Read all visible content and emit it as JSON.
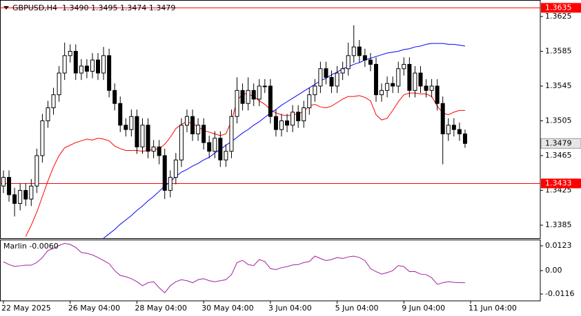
{
  "chart_data": [
    {
      "type": "candlestick",
      "title": "GBPUSD,H4  1.3490 1.3495 1.3474 1.3479",
      "xlim": [
        -0.62,
        96.53
      ],
      "ylim": [
        1.337,
        1.3644
      ],
      "yticks": [
        1.3625,
        1.3585,
        1.3545,
        1.3505,
        1.3465,
        1.3425,
        1.3385
      ],
      "hlines": [
        1.3635,
        1.3433
      ],
      "hline_color": "#ff0000",
      "bull_color": "#ffffff",
      "bear_color": "#000000",
      "open": [
        1.343,
        1.344,
        1.342,
        1.341,
        1.3425,
        1.3415,
        1.343,
        1.3465,
        1.3505,
        1.352,
        1.3535,
        1.356,
        1.358,
        1.3585,
        1.356,
        1.3568,
        1.3562,
        1.3575,
        1.356,
        1.358,
        1.354,
        1.3525,
        1.35,
        1.3495,
        1.351,
        1.3475,
        1.35,
        1.347,
        1.3475,
        1.3465,
        1.3425,
        1.344,
        1.346,
        1.35,
        1.351,
        1.349,
        1.35,
        1.348,
        1.347,
        1.3485,
        1.346,
        1.347,
        1.351,
        1.354,
        1.3525,
        1.354,
        1.353,
        1.3545,
        1.3545,
        1.351,
        1.3495,
        1.3505,
        1.35,
        1.3515,
        1.3505,
        1.352,
        1.3535,
        1.3545,
        1.3565,
        1.3555,
        1.3545,
        1.356,
        1.3565,
        1.358,
        1.359,
        1.358,
        1.3575,
        1.357,
        1.3535,
        1.354,
        1.3548,
        1.3545,
        1.3565,
        1.357,
        1.354,
        1.356,
        1.3545,
        1.354,
        1.3545,
        1.3525,
        1.349,
        1.35,
        1.3495,
        1.349
      ],
      "high": [
        1.3448,
        1.3448,
        1.3428,
        1.3433,
        1.3433,
        1.3438,
        1.3473,
        1.3513,
        1.3528,
        1.3543,
        1.3568,
        1.3595,
        1.3593,
        1.3593,
        1.3576,
        1.3576,
        1.3583,
        1.3583,
        1.359,
        1.3588,
        1.3548,
        1.3533,
        1.3508,
        1.3518,
        1.3518,
        1.3508,
        1.3508,
        1.3483,
        1.3483,
        1.3473,
        1.3448,
        1.3468,
        1.3508,
        1.3518,
        1.3518,
        1.3508,
        1.3508,
        1.3488,
        1.3493,
        1.3493,
        1.3478,
        1.3518,
        1.3555,
        1.3548,
        1.3555,
        1.3548,
        1.3553,
        1.3553,
        1.3553,
        1.3518,
        1.3513,
        1.3513,
        1.3523,
        1.3523,
        1.3528,
        1.3543,
        1.3553,
        1.3573,
        1.3573,
        1.3563,
        1.3568,
        1.3573,
        1.3595,
        1.3615,
        1.3598,
        1.3588,
        1.3583,
        1.3578,
        1.3548,
        1.3556,
        1.3556,
        1.3573,
        1.3578,
        1.3578,
        1.3568,
        1.3568,
        1.3553,
        1.3553,
        1.3553,
        1.3533,
        1.3508,
        1.3508,
        1.3503,
        1.3495
      ],
      "low": [
        1.3422,
        1.3412,
        1.3395,
        1.3402,
        1.3407,
        1.3407,
        1.3422,
        1.3457,
        1.3497,
        1.3512,
        1.3527,
        1.3552,
        1.3572,
        1.3552,
        1.3552,
        1.3554,
        1.3554,
        1.3552,
        1.3552,
        1.3532,
        1.3517,
        1.3492,
        1.3487,
        1.3487,
        1.3467,
        1.3467,
        1.3462,
        1.3462,
        1.3455,
        1.3415,
        1.3417,
        1.3432,
        1.3452,
        1.3492,
        1.3482,
        1.3482,
        1.3472,
        1.3462,
        1.3462,
        1.3452,
        1.3452,
        1.3462,
        1.3502,
        1.3517,
        1.3517,
        1.3522,
        1.3522,
        1.3537,
        1.3502,
        1.3487,
        1.3487,
        1.3492,
        1.3492,
        1.3497,
        1.3497,
        1.3512,
        1.3527,
        1.3537,
        1.3547,
        1.3537,
        1.3537,
        1.3552,
        1.3557,
        1.3572,
        1.3572,
        1.3567,
        1.3562,
        1.3527,
        1.3527,
        1.3532,
        1.3537,
        1.3537,
        1.3557,
        1.3532,
        1.3532,
        1.3537,
        1.3532,
        1.3532,
        1.3517,
        1.3455,
        1.3482,
        1.3487,
        1.3482,
        1.3474
      ],
      "close": [
        1.344,
        1.342,
        1.341,
        1.3425,
        1.3415,
        1.343,
        1.3465,
        1.3505,
        1.352,
        1.3535,
        1.356,
        1.358,
        1.3585,
        1.356,
        1.3568,
        1.3562,
        1.3575,
        1.356,
        1.358,
        1.354,
        1.3525,
        1.35,
        1.3495,
        1.351,
        1.3475,
        1.35,
        1.347,
        1.3475,
        1.3465,
        1.3425,
        1.344,
        1.346,
        1.35,
        1.351,
        1.349,
        1.35,
        1.348,
        1.347,
        1.3485,
        1.346,
        1.347,
        1.351,
        1.354,
        1.3525,
        1.354,
        1.353,
        1.3545,
        1.3545,
        1.351,
        1.3495,
        1.3505,
        1.35,
        1.3515,
        1.3505,
        1.352,
        1.3535,
        1.3545,
        1.3565,
        1.3555,
        1.3545,
        1.356,
        1.3565,
        1.358,
        1.359,
        1.358,
        1.3575,
        1.357,
        1.3535,
        1.354,
        1.3548,
        1.3545,
        1.3565,
        1.357,
        1.354,
        1.356,
        1.3545,
        1.354,
        1.3545,
        1.3525,
        1.349,
        1.35,
        1.3495,
        1.349,
        1.3479
      ],
      "series": [
        {
          "color": "#ff0000",
          "values": [
            null,
            null,
            null,
            null,
            1.3372,
            1.3385,
            1.34,
            1.3418,
            1.3436,
            1.3452,
            1.3465,
            1.3474,
            1.3477,
            1.348,
            1.3482,
            1.3484,
            1.3483,
            1.3485,
            1.3484,
            1.3482,
            1.3476,
            1.3473,
            1.3471,
            1.3471,
            1.3471,
            1.347,
            1.3471,
            1.3472,
            1.3473,
            1.3478,
            1.3486,
            1.3496,
            1.3501,
            1.3504,
            1.3502,
            1.3498,
            1.3494,
            1.3492,
            1.349,
            1.3488,
            1.349,
            1.3505,
            1.3528,
            1.3536,
            1.3536,
            1.3533,
            1.3528,
            1.3524,
            1.3518,
            1.3514,
            1.3512,
            1.3511,
            1.3512,
            1.3513,
            1.3516,
            1.3522,
            1.3524,
            1.3521,
            1.352,
            1.3522,
            1.3526,
            1.353,
            1.3533,
            1.3533,
            1.3534,
            1.3532,
            1.3528,
            1.3512,
            1.3506,
            1.3508,
            1.3517,
            1.3527,
            1.3535,
            1.3537,
            1.3537,
            1.3536,
            1.3536,
            1.3533,
            1.3522,
            1.3514,
            1.3512,
            1.3515,
            1.3517,
            1.3517
          ]
        },
        {
          "color": "#0000ff",
          "values": [
            null,
            null,
            null,
            null,
            null,
            null,
            null,
            null,
            null,
            null,
            null,
            null,
            null,
            null,
            null,
            null,
            null,
            null,
            1.337,
            1.3375,
            1.338,
            1.3386,
            1.3391,
            1.3396,
            1.3402,
            1.3407,
            1.3413,
            1.3418,
            1.3424,
            1.343,
            1.3435,
            1.3441,
            1.3446,
            1.3449,
            1.3453,
            1.3456,
            1.346,
            1.3463,
            1.3468,
            1.3472,
            1.3477,
            1.3481,
            1.3486,
            1.3491,
            1.3495,
            1.35,
            1.3504,
            1.3509,
            1.3514,
            1.3518,
            1.3523,
            1.3527,
            1.3531,
            1.3535,
            1.3539,
            1.3543,
            1.3547,
            1.3551,
            1.3554,
            1.3558,
            1.3561,
            1.3565,
            1.3567,
            1.357,
            1.3572,
            1.3575,
            1.3577,
            1.3579,
            1.3581,
            1.3583,
            1.3584,
            1.3585,
            1.3587,
            1.3588,
            1.359,
            1.3591,
            1.3593,
            1.3594,
            1.3594,
            1.3594,
            1.3593,
            1.3593,
            1.3592,
            1.3591
          ]
        }
      ]
    },
    {
      "type": "line",
      "title": "Marlin -0.0060",
      "xlim": [
        -0.62,
        96.53
      ],
      "ylim": [
        -0.015,
        0.0154
      ],
      "yticks": [
        0.0123,
        {
          "value": 0,
          "label": "0.00"
        },
        -0.0116
      ],
      "xticks": [
        {
          "value": 0,
          "label": "22 May 2025"
        },
        {
          "value": 12,
          "label": "26 May 04:00"
        },
        {
          "value": 24,
          "label": "28 May 04:00"
        },
        {
          "value": 36,
          "label": "30 May 04:00"
        },
        {
          "value": 48,
          "label": "3 Jun 04:00"
        },
        {
          "value": 60,
          "label": "5 Jun 04:00"
        },
        {
          "value": 72,
          "label": "9 Jun 04:00"
        },
        {
          "value": 84,
          "label": "11 Jun 04:00"
        }
      ],
      "series": [
        {
          "color": "#a020a0",
          "values": [
            0.0044,
            0.003,
            0.0021,
            0.0024,
            0.0027,
            0.0027,
            0.004,
            0.0065,
            0.01,
            0.011,
            0.0125,
            0.0135,
            0.013,
            0.0115,
            0.009,
            0.0086,
            0.0078,
            0.0065,
            0.005,
            0.0035,
            0.0,
            -0.0024,
            -0.003,
            -0.004,
            -0.0055,
            -0.0075,
            -0.006,
            -0.0055,
            -0.0085,
            -0.011,
            -0.0075,
            -0.0055,
            -0.0045,
            -0.005,
            -0.006,
            -0.0045,
            -0.004,
            -0.005,
            -0.0055,
            -0.005,
            -0.0045,
            -0.002,
            0.004,
            0.0051,
            0.003,
            0.0025,
            0.0055,
            0.0045,
            0.001,
            0.0005,
            0.0015,
            0.002,
            0.0028,
            0.003,
            0.004,
            0.0045,
            0.0072,
            0.006,
            0.005,
            0.0055,
            0.0065,
            0.006,
            0.0068,
            0.0072,
            0.0065,
            0.005,
            0.001,
            -0.0005,
            -0.0017,
            -0.001,
            0.0,
            0.0025,
            0.002,
            -0.0005,
            -0.0005,
            -0.0017,
            -0.002,
            -0.0035,
            -0.0068,
            -0.006,
            -0.0055,
            -0.0058,
            -0.006,
            -0.006
          ]
        }
      ]
    }
  ]
}
